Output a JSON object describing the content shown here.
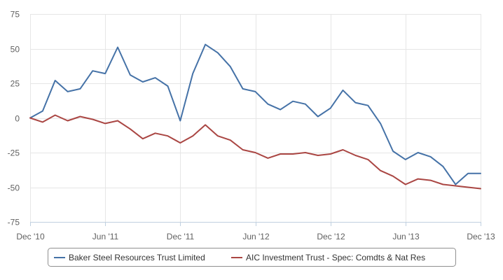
{
  "chart_data": {
    "type": "line",
    "title": "",
    "xlabel": "",
    "ylabel": "",
    "ylim": [
      -75,
      75
    ],
    "y_ticks": [
      75,
      50,
      25,
      0,
      -25,
      -50,
      -75
    ],
    "x_ticks": [
      "Dec '10",
      "Jun '11",
      "Dec '11",
      "Jun '12",
      "Dec '12",
      "Jun '13",
      "Dec '13"
    ],
    "grid": true,
    "legend_position": "bottom",
    "x": [
      "Dec '10",
      "Jan '11",
      "Feb '11",
      "Mar '11",
      "Apr '11",
      "May '11",
      "Jun '11",
      "Jul '11",
      "Aug '11",
      "Sep '11",
      "Oct '11",
      "Nov '11",
      "Dec '11",
      "Jan '12",
      "Feb '12",
      "Mar '12",
      "Apr '12",
      "May '12",
      "Jun '12",
      "Jul '12",
      "Aug '12",
      "Sep '12",
      "Oct '12",
      "Nov '12",
      "Dec '12",
      "Jan '13",
      "Feb '13",
      "Mar '13",
      "Apr '13",
      "May '13",
      "Jun '13",
      "Jul '13",
      "Aug '13",
      "Sep '13",
      "Oct '13",
      "Nov '13",
      "Dec '13"
    ],
    "series": [
      {
        "name": "Baker Steel Resources Trust Limited",
        "color": "#4572a7",
        "values": [
          0,
          5,
          27,
          19,
          21,
          34,
          32,
          51,
          31,
          26,
          29,
          23,
          -2,
          32,
          53,
          47,
          37,
          21,
          19,
          10,
          6,
          12,
          10,
          1,
          7,
          20,
          11,
          9,
          -4,
          -24,
          -30,
          -25,
          -28,
          -35,
          -48,
          -40,
          -40
        ]
      },
      {
        "name": "AIC Investment Trust - Spec: Comdts & Nat Res",
        "color": "#aa4643",
        "values": [
          0,
          -3,
          2,
          -2,
          1,
          -1,
          -4,
          -2,
          -8,
          -15,
          -11,
          -13,
          -18,
          -13,
          -5,
          -13,
          -16,
          -23,
          -25,
          -29,
          -26,
          -26,
          -25,
          -27,
          -26,
          -23,
          -27,
          -30,
          -38,
          -42,
          -48,
          -44,
          -45,
          -48,
          -49,
          -50,
          -51
        ]
      }
    ]
  }
}
